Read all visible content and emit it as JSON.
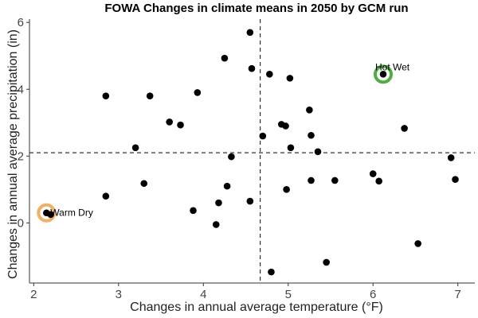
{
  "chart_data": {
    "type": "scatter",
    "title": "FOWA Changes in climate means in 2050 by GCM run",
    "xlabel": "Changes in annual average temperature (°F)",
    "ylabel": "Changes in annual average precipitation (in)",
    "xlim": [
      1.95,
      7.2
    ],
    "ylim": [
      -1.8,
      6.1
    ],
    "x_ticks": [
      2,
      3,
      4,
      5,
      6,
      7
    ],
    "y_ticks": [
      0,
      2,
      4,
      6
    ],
    "grid": false,
    "point_color": "#000000",
    "reference_lines": {
      "x": 4.67,
      "y": 2.1
    },
    "points": [
      {
        "x": 2.15,
        "y": 0.3
      },
      {
        "x": 2.2,
        "y": 0.25
      },
      {
        "x": 2.85,
        "y": 3.8
      },
      {
        "x": 2.85,
        "y": 0.8
      },
      {
        "x": 3.2,
        "y": 2.25
      },
      {
        "x": 3.3,
        "y": 1.18
      },
      {
        "x": 3.37,
        "y": 3.8
      },
      {
        "x": 3.6,
        "y": 3.02
      },
      {
        "x": 3.73,
        "y": 2.93
      },
      {
        "x": 3.88,
        "y": 0.37
      },
      {
        "x": 3.93,
        "y": 3.9
      },
      {
        "x": 4.15,
        "y": -0.05
      },
      {
        "x": 4.18,
        "y": 0.6
      },
      {
        "x": 4.25,
        "y": 4.93
      },
      {
        "x": 4.28,
        "y": 1.1
      },
      {
        "x": 4.33,
        "y": 1.98
      },
      {
        "x": 4.55,
        "y": 5.7
      },
      {
        "x": 4.57,
        "y": 4.62
      },
      {
        "x": 4.55,
        "y": 0.65
      },
      {
        "x": 4.7,
        "y": 2.6
      },
      {
        "x": 4.78,
        "y": 4.45
      },
      {
        "x": 4.8,
        "y": -1.47
      },
      {
        "x": 4.92,
        "y": 2.95
      },
      {
        "x": 4.97,
        "y": 2.9
      },
      {
        "x": 4.98,
        "y": 1.0
      },
      {
        "x": 5.02,
        "y": 4.33
      },
      {
        "x": 5.03,
        "y": 2.25
      },
      {
        "x": 5.25,
        "y": 3.38
      },
      {
        "x": 5.27,
        "y": 2.62
      },
      {
        "x": 5.27,
        "y": 1.27
      },
      {
        "x": 5.35,
        "y": 2.13
      },
      {
        "x": 5.45,
        "y": -1.18
      },
      {
        "x": 5.55,
        "y": 1.27
      },
      {
        "x": 6.0,
        "y": 1.47
      },
      {
        "x": 6.07,
        "y": 1.25
      },
      {
        "x": 6.12,
        "y": 4.45
      },
      {
        "x": 6.37,
        "y": 2.83
      },
      {
        "x": 6.53,
        "y": -0.62
      },
      {
        "x": 6.92,
        "y": 1.95
      },
      {
        "x": 6.97,
        "y": 1.3
      }
    ],
    "annotations": [
      {
        "label": "Hot Wet",
        "x": 6.12,
        "y": 4.45,
        "ring_color": "#4caf3f"
      },
      {
        "label": "Warm Dry",
        "x": 2.15,
        "y": 0.3,
        "ring_color": "#f2b064"
      }
    ]
  }
}
